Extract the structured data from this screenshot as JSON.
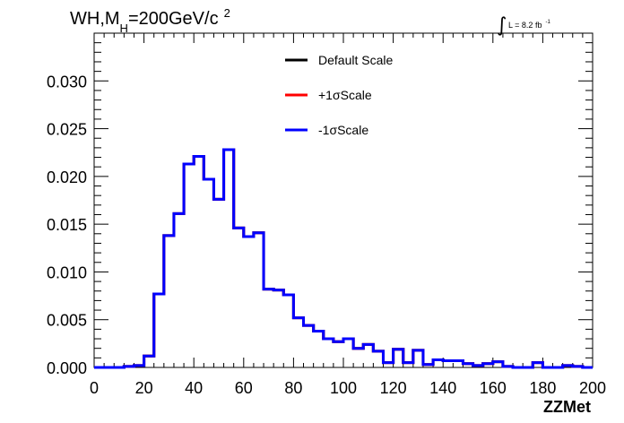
{
  "title": {
    "prefix": "WH,M",
    "subscript": "H",
    "value": "=200GeV/c",
    "superscript": "2"
  },
  "luminosity": {
    "integral_sign": "∫",
    "text": "L = 8.2 fb",
    "superscript": "-1"
  },
  "chart_data": {
    "type": "histogram",
    "xlabel": "ZZMet",
    "ylabel": "",
    "xlim": [
      0,
      200
    ],
    "ylim": [
      0,
      0.035
    ],
    "x_ticks": [
      0,
      20,
      40,
      60,
      80,
      100,
      120,
      140,
      160,
      180,
      200
    ],
    "y_ticks": [
      0.0,
      0.005,
      0.01,
      0.015,
      0.02,
      0.025,
      0.03
    ],
    "y_tick_labels": [
      "0.000",
      "0.005",
      "0.010",
      "0.015",
      "0.020",
      "0.025",
      "0.030"
    ],
    "bin_width": 4,
    "bin_edges_start": 0,
    "legend_position": "top-center",
    "series": [
      {
        "name": "Default Scale",
        "color": "#000000",
        "values": [
          0.0,
          0.0,
          0.0,
          0.0001,
          0.0002,
          0.0012,
          0.0077,
          0.0138,
          0.0161,
          0.0213,
          0.0221,
          0.0197,
          0.0176,
          0.0228,
          0.0146,
          0.0137,
          0.0141,
          0.0082,
          0.0081,
          0.0076,
          0.0052,
          0.0044,
          0.0038,
          0.003,
          0.0027,
          0.003,
          0.002,
          0.0024,
          0.0017,
          0.0005,
          0.0019,
          0.0005,
          0.0018,
          0.0003,
          0.0008,
          0.0007,
          0.0007,
          0.0004,
          0.0002,
          0.0004,
          0.0006,
          0.0001,
          0.0,
          0.0,
          0.0005,
          0.0,
          0.0,
          0.0002,
          0.0001,
          0.0
        ]
      },
      {
        "name": "+1σScale",
        "color": "#ff0000",
        "values": [
          0.0,
          0.0,
          0.0,
          0.0001,
          0.0002,
          0.0012,
          0.0077,
          0.0138,
          0.0161,
          0.0213,
          0.0221,
          0.0197,
          0.0176,
          0.0228,
          0.0146,
          0.0137,
          0.0141,
          0.0082,
          0.0081,
          0.0076,
          0.0052,
          0.0044,
          0.0038,
          0.003,
          0.0027,
          0.003,
          0.002,
          0.0024,
          0.0017,
          0.0005,
          0.0019,
          0.0005,
          0.0018,
          0.0003,
          0.0008,
          0.0007,
          0.0007,
          0.0004,
          0.0002,
          0.0004,
          0.0006,
          0.0001,
          0.0,
          0.0,
          0.0005,
          0.0,
          0.0,
          0.0002,
          0.0001,
          0.0
        ]
      },
      {
        "name": "-1σScale",
        "color": "#0000ff",
        "values": [
          0.0,
          0.0,
          0.0,
          0.0001,
          0.0002,
          0.0012,
          0.0077,
          0.0138,
          0.0161,
          0.0213,
          0.0221,
          0.0197,
          0.0176,
          0.0228,
          0.0146,
          0.0137,
          0.0141,
          0.0082,
          0.0081,
          0.0076,
          0.0052,
          0.0044,
          0.0038,
          0.003,
          0.0027,
          0.003,
          0.002,
          0.0024,
          0.0017,
          0.0005,
          0.0019,
          0.0005,
          0.0018,
          0.0003,
          0.0008,
          0.0007,
          0.0007,
          0.0004,
          0.0002,
          0.0004,
          0.0006,
          0.0001,
          0.0,
          0.0,
          0.0005,
          0.0,
          0.0,
          0.0002,
          0.0001,
          0.0
        ]
      }
    ]
  }
}
